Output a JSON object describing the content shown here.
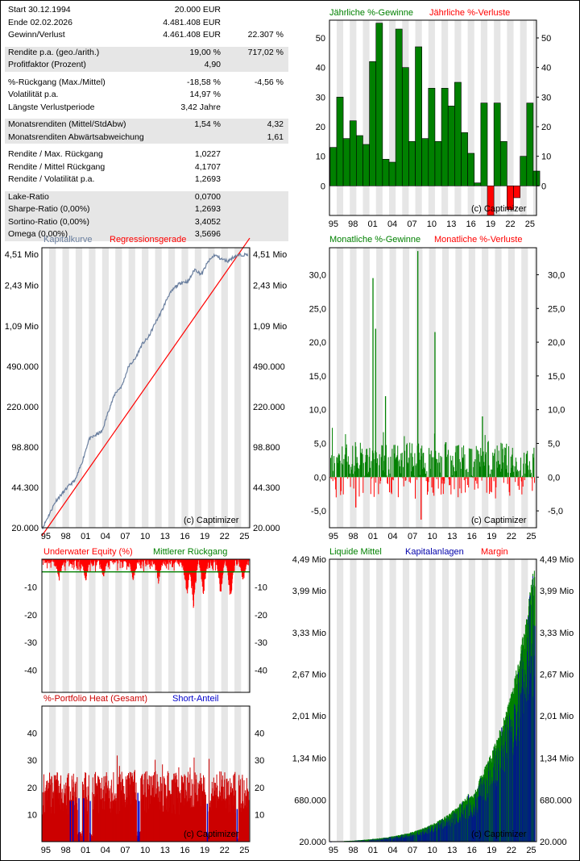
{
  "colors": {
    "green": "#008000",
    "red": "#ff0000",
    "blue": "#0000aa",
    "steel": "#6a7f9f",
    "shade": "#e6e6e6"
  },
  "stats": {
    "rows": [
      {
        "label": "Start  30.12.1994",
        "v1": "20.000 EUR",
        "v2": "",
        "shade": false
      },
      {
        "label": "Ende 02.02.2026",
        "v1": "4.481.408 EUR",
        "v2": "",
        "shade": false
      },
      {
        "label": "Gewinn/Verlust",
        "v1": "4.461.408 EUR",
        "v2": "22.307 %",
        "shade": false
      },
      {
        "gap": true
      },
      {
        "label": "Rendite p.a. (geo./arith.)",
        "v1": "19,00 %",
        "v2": "717,02 %",
        "shade": true
      },
      {
        "label": "Profitfaktor (Prozent)",
        "v1": "4,90",
        "v2": "",
        "shade": true
      },
      {
        "gap": true
      },
      {
        "label": "%-Rückgang (Max./Mittel)",
        "v1": "-18,58 %",
        "v2": "-4,56 %",
        "shade": false
      },
      {
        "label": "Volatilität p.a.",
        "v1": "14,97 %",
        "v2": "",
        "shade": false
      },
      {
        "label": "Längste Verlustperiode",
        "v1": "3,42  Jahre",
        "v2": "",
        "shade": false
      },
      {
        "gap": true
      },
      {
        "label": "Monatsrenditen (Mittel/StdAbw)",
        "v1": "1,54 %",
        "v2": "4,32",
        "shade": true
      },
      {
        "label": "Monatsrenditen Abwärtsabweichung",
        "v1": "",
        "v2": "1,61",
        "shade": true
      },
      {
        "gap": true
      },
      {
        "label": "Rendite / Max. Rückgang",
        "v1": "1,0227",
        "v2": "",
        "shade": false
      },
      {
        "label": "Rendite / Mittel Rückgang",
        "v1": "4,1707",
        "v2": "",
        "shade": false
      },
      {
        "label": "Rendite / Volatilität p.a.",
        "v1": "1,2693",
        "v2": "",
        "shade": false
      },
      {
        "gap": true
      },
      {
        "label": "Lake-Ratio",
        "v1": "0,0700",
        "v2": "",
        "shade": true
      },
      {
        "label": "Sharpe-Ratio (0,00%)",
        "v1": "1,2693",
        "v2": "",
        "shade": true
      },
      {
        "label": "Sortino-Ratio (0,00%)",
        "v1": "3,4052",
        "v2": "",
        "shade": true
      },
      {
        "label": "Omega (0,00%)",
        "v1": "3,5696",
        "v2": "",
        "shade": true
      }
    ]
  },
  "watermark": "(c) Captimizer",
  "year_ticks": [
    "95",
    "98",
    "01",
    "04",
    "07",
    "10",
    "13",
    "16",
    "19",
    "22",
    "25"
  ],
  "chart_data": [
    {
      "id": "annual",
      "type": "bar",
      "legend": [
        {
          "name": "Jährliche %-Gewinne",
          "color": "#008000"
        },
        {
          "name": "Jährliche %-Verluste",
          "color": "#ff0000"
        }
      ],
      "years": [
        1995,
        1996,
        1997,
        1998,
        1999,
        2000,
        2001,
        2002,
        2003,
        2004,
        2005,
        2006,
        2007,
        2008,
        2009,
        2010,
        2011,
        2012,
        2013,
        2014,
        2015,
        2016,
        2017,
        2018,
        2019,
        2020,
        2021,
        2022,
        2023,
        2024,
        2025,
        2026
      ],
      "values": [
        13,
        30,
        16,
        22,
        17,
        14,
        42,
        55,
        9,
        8,
        53,
        40,
        15,
        47,
        16,
        33,
        15,
        33,
        27,
        35,
        18,
        11,
        1,
        28,
        -10,
        28,
        15,
        -8,
        -4,
        10,
        28,
        5
      ],
      "ylim": [
        -10,
        56
      ],
      "yticks": [
        0,
        10,
        20,
        30,
        40,
        50
      ]
    },
    {
      "id": "equity",
      "type": "line",
      "scale": "log",
      "legend": [
        {
          "name": "Kapitalkurve",
          "color": "#6a7f9f"
        },
        {
          "name": "Regressionsgerade",
          "color": "#ff0000"
        }
      ],
      "yticks": [
        "20.000",
        "44.300",
        "98.800",
        "220.000",
        "490.000",
        "1,09 Mio",
        "2,43 Mio",
        "4,51 Mio"
      ],
      "ytick_values": [
        20000,
        44300,
        98800,
        220000,
        490000,
        1090000,
        2430000,
        4510000
      ],
      "x": [
        1995,
        1996,
        1997,
        1998,
        1999,
        2000,
        2001,
        2002,
        2003,
        2004,
        2005,
        2006,
        2007,
        2008,
        2009,
        2010,
        2011,
        2012,
        2013,
        2014,
        2015,
        2016,
        2017,
        2018,
        2019,
        2020,
        2021,
        2022,
        2023,
        2024,
        2025,
        2026.1
      ],
      "y": [
        20000,
        26000,
        34000,
        39500,
        46000,
        52000,
        74000,
        115000,
        125000,
        135000,
        206000,
        289000,
        332000,
        489000,
        567000,
        754000,
        867000,
        1150000,
        1460000,
        1980000,
        2340000,
        2590000,
        2620000,
        3350000,
        3020000,
        3870000,
        4450000,
        4100000,
        3930000,
        4320000,
        4450000,
        4481408
      ],
      "regression_start": 20000,
      "regression_end": 6200000
    },
    {
      "id": "monthly",
      "type": "bar",
      "legend": [
        {
          "name": "Monatliche %-Gewinne",
          "color": "#008000"
        },
        {
          "name": "Monatliche %-Verluste",
          "color": "#ff0000"
        }
      ],
      "ylim": [
        -7.5,
        34
      ],
      "yticks": [
        "-5,0",
        "0,0",
        "5,0",
        "10,0",
        "15,0",
        "20,0",
        "25,0",
        "30,0"
      ],
      "ytick_values": [
        -5,
        0,
        5,
        10,
        15,
        20,
        25,
        30
      ],
      "spikes": [
        {
          "x": 2001.5,
          "y": 29.5
        },
        {
          "x": 2001.9,
          "y": 22
        },
        {
          "x": 2008.3,
          "y": 33.5
        },
        {
          "x": 2010.9,
          "y": 21.5
        },
        {
          "x": 2003.4,
          "y": 12
        },
        {
          "x": 2018.1,
          "y": 9
        },
        {
          "x": 1998.9,
          "y": -4.5
        },
        {
          "x": 2008.8,
          "y": -6.3
        }
      ]
    },
    {
      "id": "underwater",
      "type": "area",
      "legend": [
        {
          "name": "Underwater Equity (%)",
          "color": "#ff0000"
        },
        {
          "name": "Mittlerer Rückgang",
          "color": "#008000"
        }
      ],
      "ylim": [
        -48,
        0
      ],
      "yticks": [
        "-10",
        "-20",
        "-30",
        "-40"
      ],
      "ytick_values": [
        -10,
        -20,
        -30,
        -40
      ],
      "mean": -4.56,
      "min": -18.58
    },
    {
      "id": "heat",
      "type": "area",
      "legend": [
        {
          "name": "%-Portfolio Heat (Gesamt)",
          "color": "#cc0000"
        },
        {
          "name": "Short-Anteil",
          "color": "#0000cc"
        }
      ],
      "ylim": [
        0,
        50
      ],
      "yticks": [
        "10",
        "20",
        "30",
        "40"
      ],
      "ytick_values": [
        10,
        20,
        30,
        40
      ]
    },
    {
      "id": "capital",
      "type": "area",
      "legend": [
        {
          "name": "Liquide Mittel",
          "color": "#008000"
        },
        {
          "name": "Kapitalanlagen",
          "color": "#0000aa"
        },
        {
          "name": "Margin",
          "color": "#ff0000"
        }
      ],
      "yticks": [
        "20.000",
        "680.000",
        "1,34 Mio",
        "2,01 Mio",
        "2,67 Mio",
        "3,33 Mio",
        "3,99 Mio",
        "4,49 Mio"
      ],
      "ytick_values": [
        20000,
        680000,
        1340000,
        2010000,
        2670000,
        3330000,
        3990000,
        4490000
      ]
    }
  ]
}
